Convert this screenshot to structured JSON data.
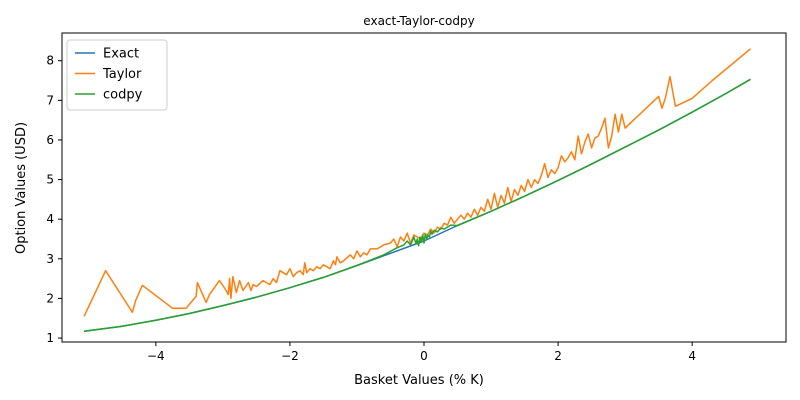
{
  "chart_data": {
    "type": "line",
    "title": "exact-Taylor-codpy",
    "xlabel": "Basket Values (% K)",
    "ylabel": "Option Values (USD)",
    "xlim": [
      -5.4,
      5.4
    ],
    "ylim": [
      0.9,
      8.7
    ],
    "x_ticks": [
      -4,
      -2,
      0,
      2,
      4
    ],
    "x_tick_labels": [
      "−4",
      "−2",
      "0",
      "2",
      "4"
    ],
    "y_ticks": [
      1,
      2,
      3,
      4,
      5,
      6,
      7,
      8
    ],
    "y_tick_labels": [
      "1",
      "2",
      "3",
      "4",
      "5",
      "6",
      "7",
      "8"
    ],
    "grid": false,
    "legend_position": "top-left",
    "series": [
      {
        "name": "Exact",
        "color": "#1f77b4",
        "x": [
          -5.07,
          -4.5,
          -4.0,
          -3.5,
          -3.0,
          -2.5,
          -2.0,
          -1.5,
          -1.0,
          -0.5,
          0.0,
          0.5,
          1.0,
          1.5,
          2.0,
          2.5,
          3.0,
          3.5,
          4.0,
          4.5,
          4.87
        ],
        "y": [
          1.17,
          1.3,
          1.45,
          1.62,
          1.82,
          2.03,
          2.27,
          2.53,
          2.83,
          3.14,
          3.45,
          3.84,
          4.2,
          4.58,
          4.98,
          5.39,
          5.82,
          6.25,
          6.7,
          7.17,
          7.53
        ]
      },
      {
        "name": "Taylor",
        "color": "#ff7f0e",
        "x": [
          -5.07,
          -4.75,
          -4.35,
          -4.3,
          -4.2,
          -3.75,
          -3.55,
          -3.4,
          -3.38,
          -3.25,
          -3.2,
          -3.05,
          -2.95,
          -2.92,
          -2.9,
          -2.88,
          -2.85,
          -2.8,
          -2.75,
          -2.7,
          -2.62,
          -2.58,
          -2.55,
          -2.5,
          -2.4,
          -2.3,
          -2.25,
          -2.2,
          -2.15,
          -2.05,
          -2.0,
          -1.95,
          -1.9,
          -1.85,
          -1.8,
          -1.78,
          -1.75,
          -1.7,
          -1.65,
          -1.6,
          -1.55,
          -1.5,
          -1.45,
          -1.4,
          -1.35,
          -1.32,
          -1.3,
          -1.25,
          -1.2,
          -1.1,
          -1.05,
          -1.0,
          -0.95,
          -0.9,
          -0.85,
          -0.8,
          -0.7,
          -0.6,
          -0.5,
          -0.45,
          -0.4,
          -0.35,
          -0.3,
          -0.25,
          -0.2,
          -0.15,
          -0.1,
          -0.05,
          0.0,
          0.05,
          0.1,
          0.15,
          0.2,
          0.25,
          0.3,
          0.35,
          0.4,
          0.45,
          0.5,
          0.55,
          0.6,
          0.65,
          0.7,
          0.75,
          0.8,
          0.85,
          0.9,
          0.95,
          1.0,
          1.05,
          1.1,
          1.15,
          1.2,
          1.25,
          1.3,
          1.35,
          1.4,
          1.45,
          1.5,
          1.55,
          1.6,
          1.65,
          1.7,
          1.75,
          1.8,
          1.85,
          1.9,
          1.95,
          2.0,
          2.05,
          2.1,
          2.15,
          2.2,
          2.25,
          2.3,
          2.35,
          2.4,
          2.45,
          2.5,
          2.55,
          2.6,
          2.65,
          2.7,
          2.75,
          2.8,
          2.85,
          2.9,
          2.95,
          3.0,
          3.5,
          3.55,
          3.6,
          3.67,
          3.75,
          4.0,
          4.3,
          4.87
        ],
        "y": [
          1.55,
          2.7,
          1.65,
          1.95,
          2.33,
          1.75,
          1.75,
          2.05,
          2.4,
          1.9,
          2.1,
          2.45,
          2.2,
          2.1,
          2.5,
          2.0,
          2.55,
          2.15,
          2.45,
          2.2,
          2.4,
          2.2,
          2.35,
          2.3,
          2.45,
          2.35,
          2.5,
          2.4,
          2.7,
          2.6,
          2.75,
          2.55,
          2.65,
          2.7,
          2.6,
          2.9,
          2.65,
          2.75,
          2.7,
          2.8,
          2.75,
          2.85,
          2.8,
          2.75,
          2.95,
          2.85,
          3.05,
          2.9,
          2.95,
          3.1,
          3.0,
          3.2,
          3.05,
          3.15,
          3.1,
          3.25,
          3.25,
          3.35,
          3.4,
          3.5,
          3.3,
          3.55,
          3.45,
          3.65,
          3.4,
          3.6,
          3.55,
          3.5,
          3.65,
          3.6,
          3.75,
          3.65,
          3.8,
          3.75,
          3.9,
          3.85,
          4.05,
          3.9,
          4.0,
          4.1,
          4.0,
          4.15,
          4.05,
          4.25,
          4.1,
          4.3,
          4.2,
          4.5,
          4.25,
          4.65,
          4.3,
          4.6,
          4.4,
          4.8,
          4.45,
          4.75,
          4.6,
          4.85,
          4.7,
          5.0,
          4.8,
          5.0,
          4.9,
          5.1,
          5.4,
          5.05,
          5.25,
          5.15,
          5.3,
          5.6,
          5.45,
          5.55,
          5.7,
          5.5,
          6.1,
          5.65,
          5.95,
          6.15,
          5.8,
          6.05,
          6.1,
          6.3,
          6.55,
          5.8,
          6.1,
          6.65,
          6.2,
          6.65,
          6.3,
          7.1,
          6.8,
          7.05,
          7.6,
          6.85,
          7.05,
          7.5,
          8.3
        ]
      },
      {
        "name": "codpy",
        "color": "#2ca02c",
        "x": [
          -5.07,
          -4.5,
          -4.0,
          -3.5,
          -3.0,
          -2.5,
          -2.0,
          -1.5,
          -1.0,
          -0.6,
          -0.4,
          -0.3,
          -0.25,
          -0.2,
          -0.15,
          -0.12,
          -0.1,
          -0.08,
          -0.06,
          -0.04,
          -0.02,
          0.0,
          0.02,
          0.04,
          0.06,
          0.08,
          0.1,
          0.12,
          0.15,
          0.2,
          0.25,
          0.3,
          0.4,
          0.5,
          1.0,
          1.5,
          2.0,
          2.5,
          3.0,
          3.5,
          4.0,
          4.5,
          4.87
        ],
        "y": [
          1.17,
          1.3,
          1.45,
          1.62,
          1.82,
          2.03,
          2.27,
          2.53,
          2.83,
          3.1,
          3.28,
          3.35,
          3.45,
          3.35,
          3.55,
          3.38,
          3.5,
          3.33,
          3.55,
          3.42,
          3.6,
          3.4,
          3.62,
          3.5,
          3.6,
          3.55,
          3.7,
          3.62,
          3.72,
          3.68,
          3.78,
          3.75,
          3.85,
          3.84,
          4.2,
          4.58,
          4.98,
          5.39,
          5.82,
          6.25,
          6.7,
          7.17,
          7.53
        ]
      }
    ]
  }
}
